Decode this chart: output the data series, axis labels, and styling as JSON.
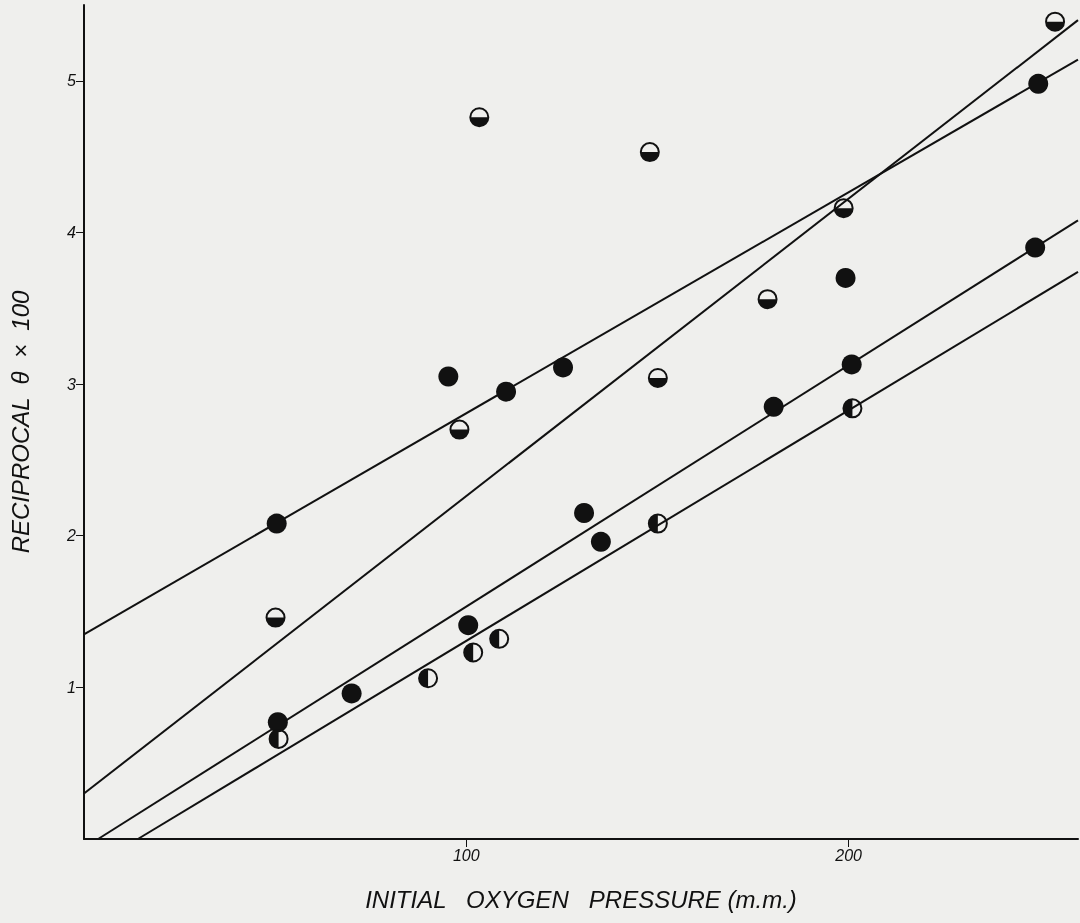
{
  "chart_data": {
    "type": "scatter",
    "xlabel": "INITIAL   OXYGEN   PRESSURE (m.m.)",
    "ylabel": "RECIPROCAL  θ  ×  100",
    "xlim": [
      0,
      260
    ],
    "xticks": [
      100,
      200
    ],
    "ylim": [
      0,
      5.5
    ],
    "yticks": [
      1,
      2,
      3,
      4,
      5
    ],
    "grid": false,
    "marker": "circle",
    "series": [
      {
        "color": "#111111",
        "x": [
          50.4,
          95.3,
          110.4,
          125.3,
          249.6,
          199.2,
          200.8,
          180.4,
          248.8,
          130.8,
          135.2,
          50.7,
          70.0,
          100.5
        ],
        "values": [
          2.08,
          3.05,
          2.95,
          3.11,
          4.98,
          3.7,
          3.13,
          2.85,
          3.9,
          2.15,
          1.96,
          0.77,
          0.96,
          1.41
        ]
      },
      {
        "color": "#111111",
        "x": [
          50.1,
          98.2,
          103.4,
          148.0,
          178.8,
          150.1,
          198.7,
          254
        ],
        "values": [
          1.46,
          2.7,
          4.76,
          4.53,
          3.56,
          3.04,
          4.16,
          5.39
        ]
      },
      {
        "color": "#111111",
        "x": [
          50.9,
          90.0,
          101.8,
          108.6,
          150.1,
          201.0
        ],
        "values": [
          0.66,
          1.06,
          1.23,
          1.32,
          2.08,
          2.84
        ]
      },
      {
        "type": "line",
        "color": "#111111",
        "marker": "none",
        "x": [
          0,
          260
        ],
        "values": [
          1.35,
          5.14
        ]
      },
      {
        "type": "line",
        "color": "#111111",
        "marker": "none",
        "x": [
          0,
          260
        ],
        "values": [
          0.3,
          5.4
        ]
      },
      {
        "type": "line",
        "color": "#111111",
        "marker": "none",
        "x": [
          3.7,
          260
        ],
        "values": [
          0,
          4.08
        ]
      },
      {
        "type": "line",
        "color": "#111111",
        "marker": "none",
        "x": [
          14.1,
          260
        ],
        "values": [
          0,
          3.74
        ]
      }
    ]
  }
}
